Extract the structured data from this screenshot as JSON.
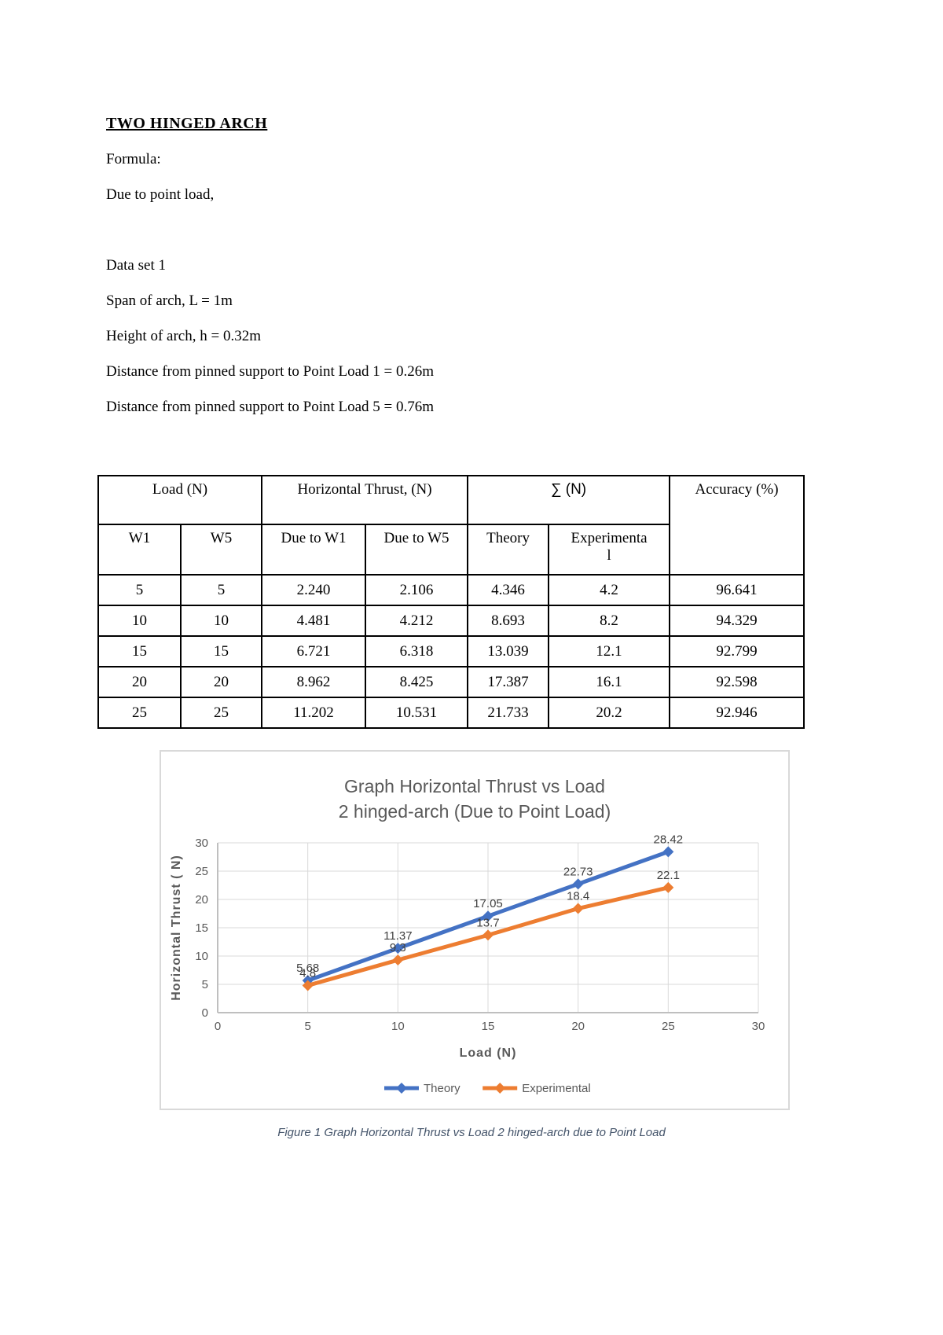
{
  "document": {
    "title": "TWO HINGED ARCH",
    "paragraphs": [
      "Formula:",
      "Due to point load,",
      "Data set 1",
      "Span of arch, L = 1m",
      "Height of arch, h = 0.32m",
      "Distance from pinned support to Point Load 1 = 0.26m",
      "Distance from pinned support to Point Load 5 = 0.76m"
    ]
  },
  "table": {
    "h1": {
      "load": "Load (N)",
      "thrust": "Horizontal Thrust,  (N)",
      "sum": "∑ (N)",
      "accuracy": "Accuracy (%)"
    },
    "h2": {
      "w1": "W1",
      "w5": "W5",
      "due_w1": "Due to W1",
      "due_w5": "Due to W5",
      "theory": "Theory",
      "experimental": "Experimenta\nl"
    },
    "rows": [
      [
        "5",
        "5",
        "2.240",
        "2.106",
        "4.346",
        "4.2",
        "96.641"
      ],
      [
        "10",
        "10",
        "4.481",
        "4.212",
        "8.693",
        "8.2",
        "94.329"
      ],
      [
        "15",
        "15",
        "6.721",
        "6.318",
        "13.039",
        "12.1",
        "92.799"
      ],
      [
        "20",
        "20",
        "8.962",
        "8.425",
        "17.387",
        "16.1",
        "92.598"
      ],
      [
        "25",
        "25",
        "11.202",
        "10.531",
        "21.733",
        "20.2",
        "92.946"
      ]
    ]
  },
  "chart_data": {
    "type": "line",
    "title_line1": "Graph Horizontal Thrust vs Load",
    "title_line2": "2 hinged-arch (Due to Point Load)",
    "xlabel": "Load (N)",
    "ylabel": "Horizontal Thrust ( N)",
    "x": [
      5,
      10,
      15,
      20,
      25
    ],
    "series": [
      {
        "name": "Theory",
        "color": "#4472C4",
        "values": [
          5.68,
          11.37,
          17.05,
          22.73,
          28.42
        ],
        "labels": [
          "5.68",
          "11.37",
          "17.05",
          "22.73",
          "28.42"
        ]
      },
      {
        "name": "Experimental",
        "color": "#ED7D31",
        "values": [
          4.8,
          9.3,
          13.7,
          18.4,
          22.1
        ],
        "labels": [
          "4.8",
          "9.3",
          "13.7",
          "18.4",
          "22.1"
        ]
      }
    ],
    "xlim": [
      0,
      30
    ],
    "ylim": [
      0,
      30
    ],
    "tick_step": 5,
    "grid": true,
    "legend_position": "bottom"
  },
  "caption": "Figure 1 Graph Horizontal Thrust vs Load 2 hinged-arch due to Point Load"
}
